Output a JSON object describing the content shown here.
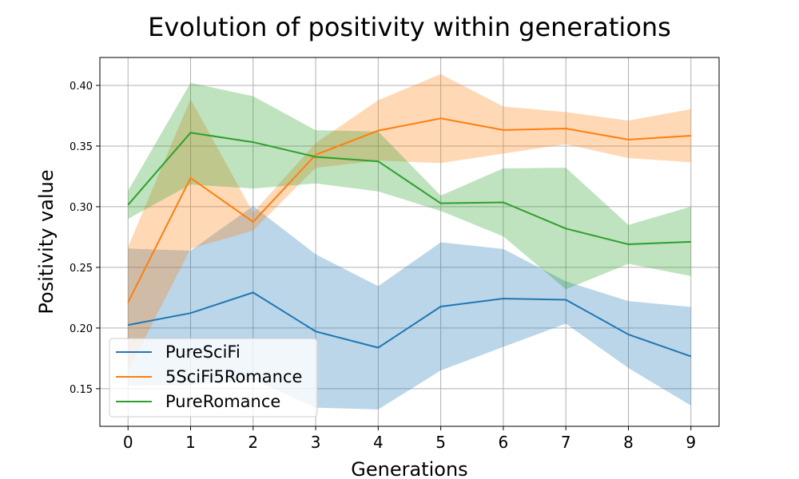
{
  "chart_data": {
    "type": "line",
    "title": "Evolution of positivity within generations",
    "xlabel": "Generations",
    "ylabel": "Positivity value",
    "x": [
      0,
      1,
      2,
      3,
      4,
      5,
      6,
      7,
      8,
      9
    ],
    "xlim": [
      -0.45,
      9.45
    ],
    "ylim": [
      0.119,
      0.423
    ],
    "xticks": [
      "0",
      "1",
      "2",
      "3",
      "4",
      "5",
      "6",
      "7",
      "8",
      "9"
    ],
    "yticks": [
      "0.15",
      "0.20",
      "0.25",
      "0.30",
      "0.35",
      "0.40"
    ],
    "grid": true,
    "legend_position": "lower-left",
    "series": [
      {
        "name": "PureSciFi",
        "color": "#1f77b4",
        "values": [
          0.2025,
          0.2123,
          0.2293,
          0.1972,
          0.1838,
          0.2177,
          0.2243,
          0.2233,
          0.1947,
          0.1766
        ],
        "upper": [
          0.2655,
          0.2638,
          0.3005,
          0.2608,
          0.2345,
          0.2707,
          0.2652,
          0.2385,
          0.2222,
          0.2174
        ],
        "lower": [
          0.1525,
          0.1529,
          0.1576,
          0.1344,
          0.1329,
          0.1651,
          0.1845,
          0.2036,
          0.167,
          0.1361
        ]
      },
      {
        "name": "5SciFi5Romance",
        "color": "#ff7f0e",
        "values": [
          0.2211,
          0.3237,
          0.2875,
          0.3428,
          0.3627,
          0.3728,
          0.3632,
          0.3644,
          0.3553,
          0.3585
        ],
        "upper": [
          0.2668,
          0.3887,
          0.295,
          0.3524,
          0.3878,
          0.4093,
          0.3826,
          0.378,
          0.371,
          0.3804
        ],
        "lower": [
          0.1644,
          0.2654,
          0.2803,
          0.332,
          0.338,
          0.336,
          0.3438,
          0.3515,
          0.3401,
          0.3366
        ]
      },
      {
        "name": "PureRomance",
        "color": "#2ca02c",
        "values": [
          0.3015,
          0.361,
          0.3532,
          0.3411,
          0.3374,
          0.3028,
          0.3036,
          0.282,
          0.269,
          0.2711
        ],
        "upper": [
          0.313,
          0.4021,
          0.3911,
          0.363,
          0.362,
          0.3092,
          0.3316,
          0.3321,
          0.285,
          0.3
        ],
        "lower": [
          0.29,
          0.3183,
          0.315,
          0.3192,
          0.3126,
          0.2965,
          0.2756,
          0.2319,
          0.253,
          0.2428
        ]
      }
    ]
  }
}
